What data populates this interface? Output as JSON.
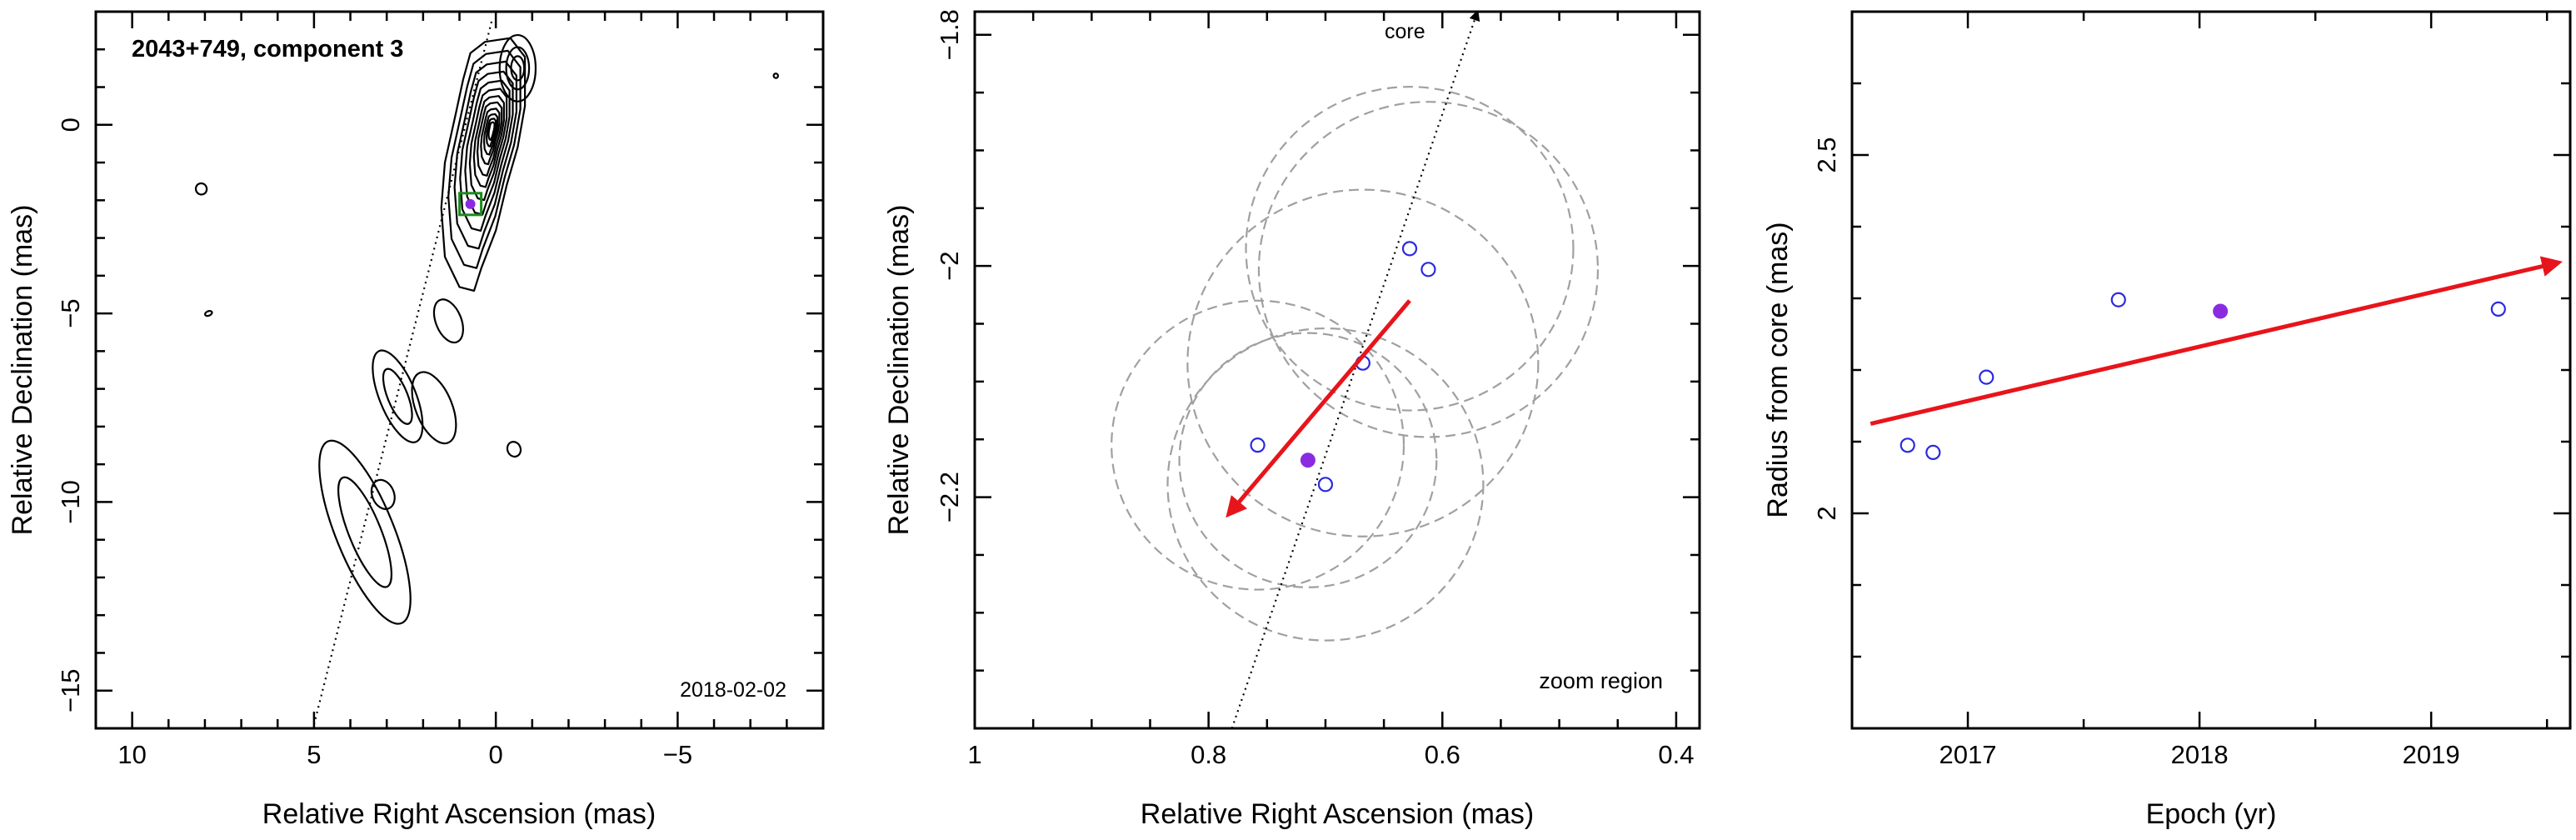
{
  "chart_data": [
    {
      "type": "scatter",
      "panel": "contour-map",
      "title": "2043+749, component 3",
      "date": "2018-02-02",
      "xlabel": "Relative Right Ascension (mas)",
      "ylabel": "Relative Declination (mas)",
      "xlim": [
        11,
        -9
      ],
      "ylim": [
        -16,
        3
      ],
      "xticks": [
        10,
        5,
        0,
        -5
      ],
      "yticks": [
        0,
        -5,
        -10,
        -15
      ],
      "xtick_labels": [
        "10",
        "5",
        "0",
        "−5"
      ],
      "ytick_labels": [
        "0",
        "−5",
        "−10",
        "−15"
      ],
      "core": [
        0,
        0
      ],
      "component_box": [
        0.7,
        -2.1
      ],
      "jet_axis": [
        [
          5.0,
          -15.9
        ],
        [
          0.1,
          2.8
        ]
      ],
      "contour_peaks": [
        [
          0.1,
          -0.1
        ],
        [
          -0.6,
          1.5
        ]
      ],
      "outer_contour": [
        [
          1.0,
          -4.3
        ],
        [
          1.4,
          -3.5
        ],
        [
          1.5,
          -2.2
        ],
        [
          1.4,
          -1.0
        ],
        [
          1.1,
          0.3
        ],
        [
          0.9,
          1.2
        ],
        [
          0.7,
          1.9
        ],
        [
          0.3,
          2.2
        ],
        [
          -0.4,
          2.3
        ],
        [
          -0.8,
          1.8
        ],
        [
          -0.8,
          0.5
        ],
        [
          -0.6,
          -0.6
        ],
        [
          -0.3,
          -1.6
        ],
        [
          0.0,
          -2.8
        ],
        [
          0.4,
          -3.8
        ],
        [
          0.6,
          -4.4
        ]
      ],
      "islands": [
        {
          "center": [
            2.7,
            -7.2
          ],
          "rx": 0.5,
          "ry": 1.3
        },
        {
          "center": [
            3.6,
            -10.8
          ],
          "rx": 0.8,
          "ry": 2.6
        },
        {
          "center": [
            1.7,
            -7.5
          ],
          "rx": 0.5,
          "ry": 1.0
        },
        {
          "center": [
            3.1,
            -9.8
          ],
          "rx": 0.3,
          "ry": 0.4
        },
        {
          "center": [
            -0.5,
            -8.6
          ],
          "rx": 0.18,
          "ry": 0.2
        },
        {
          "center": [
            1.3,
            -5.2
          ],
          "rx": 0.35,
          "ry": 0.6
        },
        {
          "center": [
            8.1,
            -1.7
          ],
          "rx": 0.15,
          "ry": 0.15
        },
        {
          "center": [
            7.9,
            -5.0
          ],
          "rx": 0.1,
          "ry": 0.06
        },
        {
          "center": [
            -7.7,
            1.3
          ],
          "rx": 0.06,
          "ry": 0.06
        }
      ]
    },
    {
      "type": "scatter",
      "panel": "zoom",
      "label_core": "core",
      "label_zoom": "zoom region",
      "xlabel": "Relative Right Ascension (mas)",
      "ylabel": "Relative Declination (mas)",
      "xlim": [
        1.0,
        0.38
      ],
      "ylim": [
        -2.4,
        -1.78
      ],
      "xticks": [
        1,
        0.8,
        0.6,
        0.4
      ],
      "yticks": [
        -1.8,
        -2,
        -2.2
      ],
      "xtick_labels": [
        "1",
        "0.8",
        "0.6",
        "0.4"
      ],
      "ytick_labels": [
        "−1.8",
        "−2",
        "−2.2"
      ],
      "points_open": [
        [
          0.628,
          -1.985
        ],
        [
          0.612,
          -2.003
        ],
        [
          0.668,
          -2.084
        ],
        [
          0.758,
          -2.155
        ],
        [
          0.7,
          -2.189
        ]
      ],
      "point_filled": [
        0.715,
        -2.168
      ],
      "circles": [
        {
          "center": [
            0.628,
            -1.985
          ],
          "r": 0.14
        },
        {
          "center": [
            0.612,
            -2.003
          ],
          "r": 0.145
        },
        {
          "center": [
            0.668,
            -2.084
          ],
          "r": 0.15
        },
        {
          "center": [
            0.758,
            -2.155
          ],
          "r": 0.125
        },
        {
          "center": [
            0.7,
            -2.189
          ],
          "r": 0.135
        },
        {
          "center": [
            0.715,
            -2.168
          ],
          "r": 0.11
        }
      ],
      "jet_axis": [
        [
          0.78,
          -2.4
        ],
        [
          0.57,
          -1.78
        ]
      ],
      "motion_arrow": [
        [
          0.628,
          -2.03
        ],
        [
          0.783,
          -2.215
        ]
      ]
    },
    {
      "type": "scatter",
      "panel": "radius-vs-epoch",
      "xlabel": "Epoch (yr)",
      "ylabel": "Radius from core (mas)",
      "xlim": [
        2016.5,
        2019.6
      ],
      "ylim": [
        1.7,
        2.7
      ],
      "xticks": [
        2017,
        2018,
        2019
      ],
      "yticks": [
        2,
        2.5
      ],
      "xtick_labels": [
        "2017",
        "2018",
        "2019"
      ],
      "ytick_labels": [
        "2",
        "2.5"
      ],
      "points_open": [
        [
          2016.74,
          2.095
        ],
        [
          2016.85,
          2.085
        ],
        [
          2017.08,
          2.19
        ],
        [
          2017.65,
          2.298
        ],
        [
          2019.29,
          2.285
        ]
      ],
      "point_filled": [
        2018.09,
        2.282
      ],
      "fit_arrow": [
        [
          2016.58,
          2.125
        ],
        [
          2019.55,
          2.35
        ]
      ]
    }
  ]
}
